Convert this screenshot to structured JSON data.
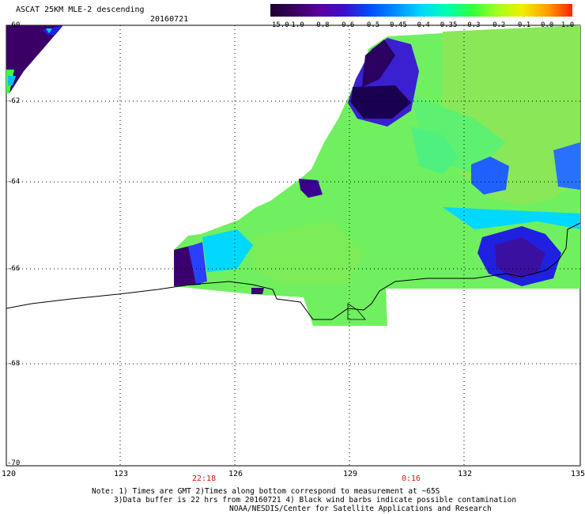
{
  "header": {
    "title": "ASCAT 25KM MLE-2 descending",
    "date": "20160721"
  },
  "colorbar": {
    "labels": [
      "-15.0",
      "-1.0",
      "-0.8",
      "-0.6",
      "-0.5",
      "-0.45",
      "-0.4",
      "-0.35",
      "-0.3",
      "-0.2",
      "-0.1",
      "0.0",
      "1.0"
    ],
    "colors": [
      "#1a0030",
      "#3a0060",
      "#5a00a0",
      "#3a10d0",
      "#0050ff",
      "#0090ff",
      "#00d8ff",
      "#00ffb0",
      "#30ff40",
      "#a0ff20",
      "#f0f000",
      "#ffa000",
      "#ff2000"
    ]
  },
  "axes": {
    "lat_labels": [
      "-60",
      "-62",
      "-64",
      "-66",
      "-68",
      "-70"
    ],
    "lon_labels": [
      "120",
      "123",
      "126",
      "129",
      "132",
      "135"
    ]
  },
  "time_labels": [
    "22:18",
    "0:16"
  ],
  "notes": {
    "line1": "Note: 1) Times are GMT 2)Times along bottom correspond to measurement at ~65S",
    "line2": "3)Data buffer is 22 hrs from 20160721 4) Black wind barbs indicate possible contamination",
    "line3": "NOAA/NESDIS/Center for Satellite Applications and Research"
  }
}
